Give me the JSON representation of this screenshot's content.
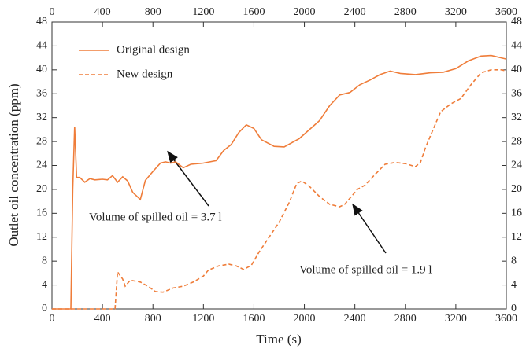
{
  "chart_data": {
    "type": "line",
    "xlabel": "Time (s)",
    "ylabel": "Outlet oil concentration (ppm)",
    "xlim": [
      0,
      3600
    ],
    "xticks": [
      0,
      400,
      800,
      1200,
      1600,
      2000,
      2400,
      2800,
      3200,
      3600
    ],
    "ylim": [
      0,
      48
    ],
    "yticks": [
      0,
      4,
      8,
      12,
      16,
      20,
      24,
      28,
      32,
      36,
      40,
      44,
      48
    ],
    "legend": "upper left",
    "annotations": [
      "Volume of spilled oil = 3.7 l",
      "Volume of spilled oil = 1.9 l"
    ],
    "series": [
      {
        "name": "Original design",
        "color": "#ef7d3a",
        "dash": "solid",
        "x": [
          0,
          150,
          165,
          180,
          195,
          220,
          260,
          300,
          340,
          400,
          440,
          480,
          520,
          560,
          600,
          640,
          700,
          740,
          800,
          860,
          900,
          940,
          980,
          1040,
          1100,
          1200,
          1300,
          1360,
          1420,
          1480,
          1540,
          1600,
          1660,
          1760,
          1840,
          1960,
          2040,
          2120,
          2200,
          2280,
          2360,
          2440,
          2520,
          2600,
          2680,
          2760,
          2880,
          3000,
          3100,
          3200,
          3300,
          3400,
          3480,
          3560,
          3600
        ],
        "values": [
          0,
          0,
          20,
          30.5,
          22,
          22,
          21.2,
          21.8,
          21.6,
          21.7,
          21.6,
          22.3,
          21.2,
          22.1,
          21.4,
          19.5,
          18.3,
          21.5,
          23,
          24.4,
          24.6,
          24.4,
          24.6,
          23.6,
          24.2,
          24.4,
          24.8,
          26.5,
          27.5,
          29.5,
          30.8,
          30.2,
          28.3,
          27.2,
          27.1,
          28.5,
          30,
          31.5,
          34,
          35.8,
          36.2,
          37.5,
          38.3,
          39.2,
          39.8,
          39.4,
          39.2,
          39.5,
          39.6,
          40.2,
          41.5,
          42.3,
          42.4,
          42,
          41.8
        ]
      },
      {
        "name": "New design",
        "color": "#ef7d3a",
        "dash": "dashed",
        "x": [
          0,
          500,
          520,
          560,
          580,
          620,
          700,
          760,
          820,
          880,
          960,
          1040,
          1120,
          1200,
          1240,
          1320,
          1400,
          1460,
          1520,
          1580,
          1640,
          1720,
          1800,
          1880,
          1940,
          1980,
          2040,
          2120,
          2200,
          2280,
          2320,
          2360,
          2420,
          2480,
          2560,
          2640,
          2720,
          2800,
          2880,
          2920,
          2960,
          3040,
          3080,
          3160,
          3240,
          3320,
          3400,
          3480,
          3560,
          3600
        ],
        "values": [
          0,
          0,
          6.2,
          5,
          3.8,
          4.8,
          4.5,
          3.8,
          2.9,
          2.8,
          3.5,
          3.8,
          4.5,
          5.5,
          6.5,
          7.2,
          7.5,
          7.2,
          6.6,
          7.3,
          9.5,
          12,
          14.5,
          17.8,
          21,
          21.4,
          20.5,
          18.8,
          17.5,
          17.1,
          17.5,
          18.5,
          20,
          20.7,
          22.5,
          24.2,
          24.5,
          24.3,
          23.8,
          24.5,
          27,
          31,
          33,
          34.3,
          35.2,
          37.5,
          39.5,
          40,
          40,
          39.8
        ]
      }
    ]
  }
}
